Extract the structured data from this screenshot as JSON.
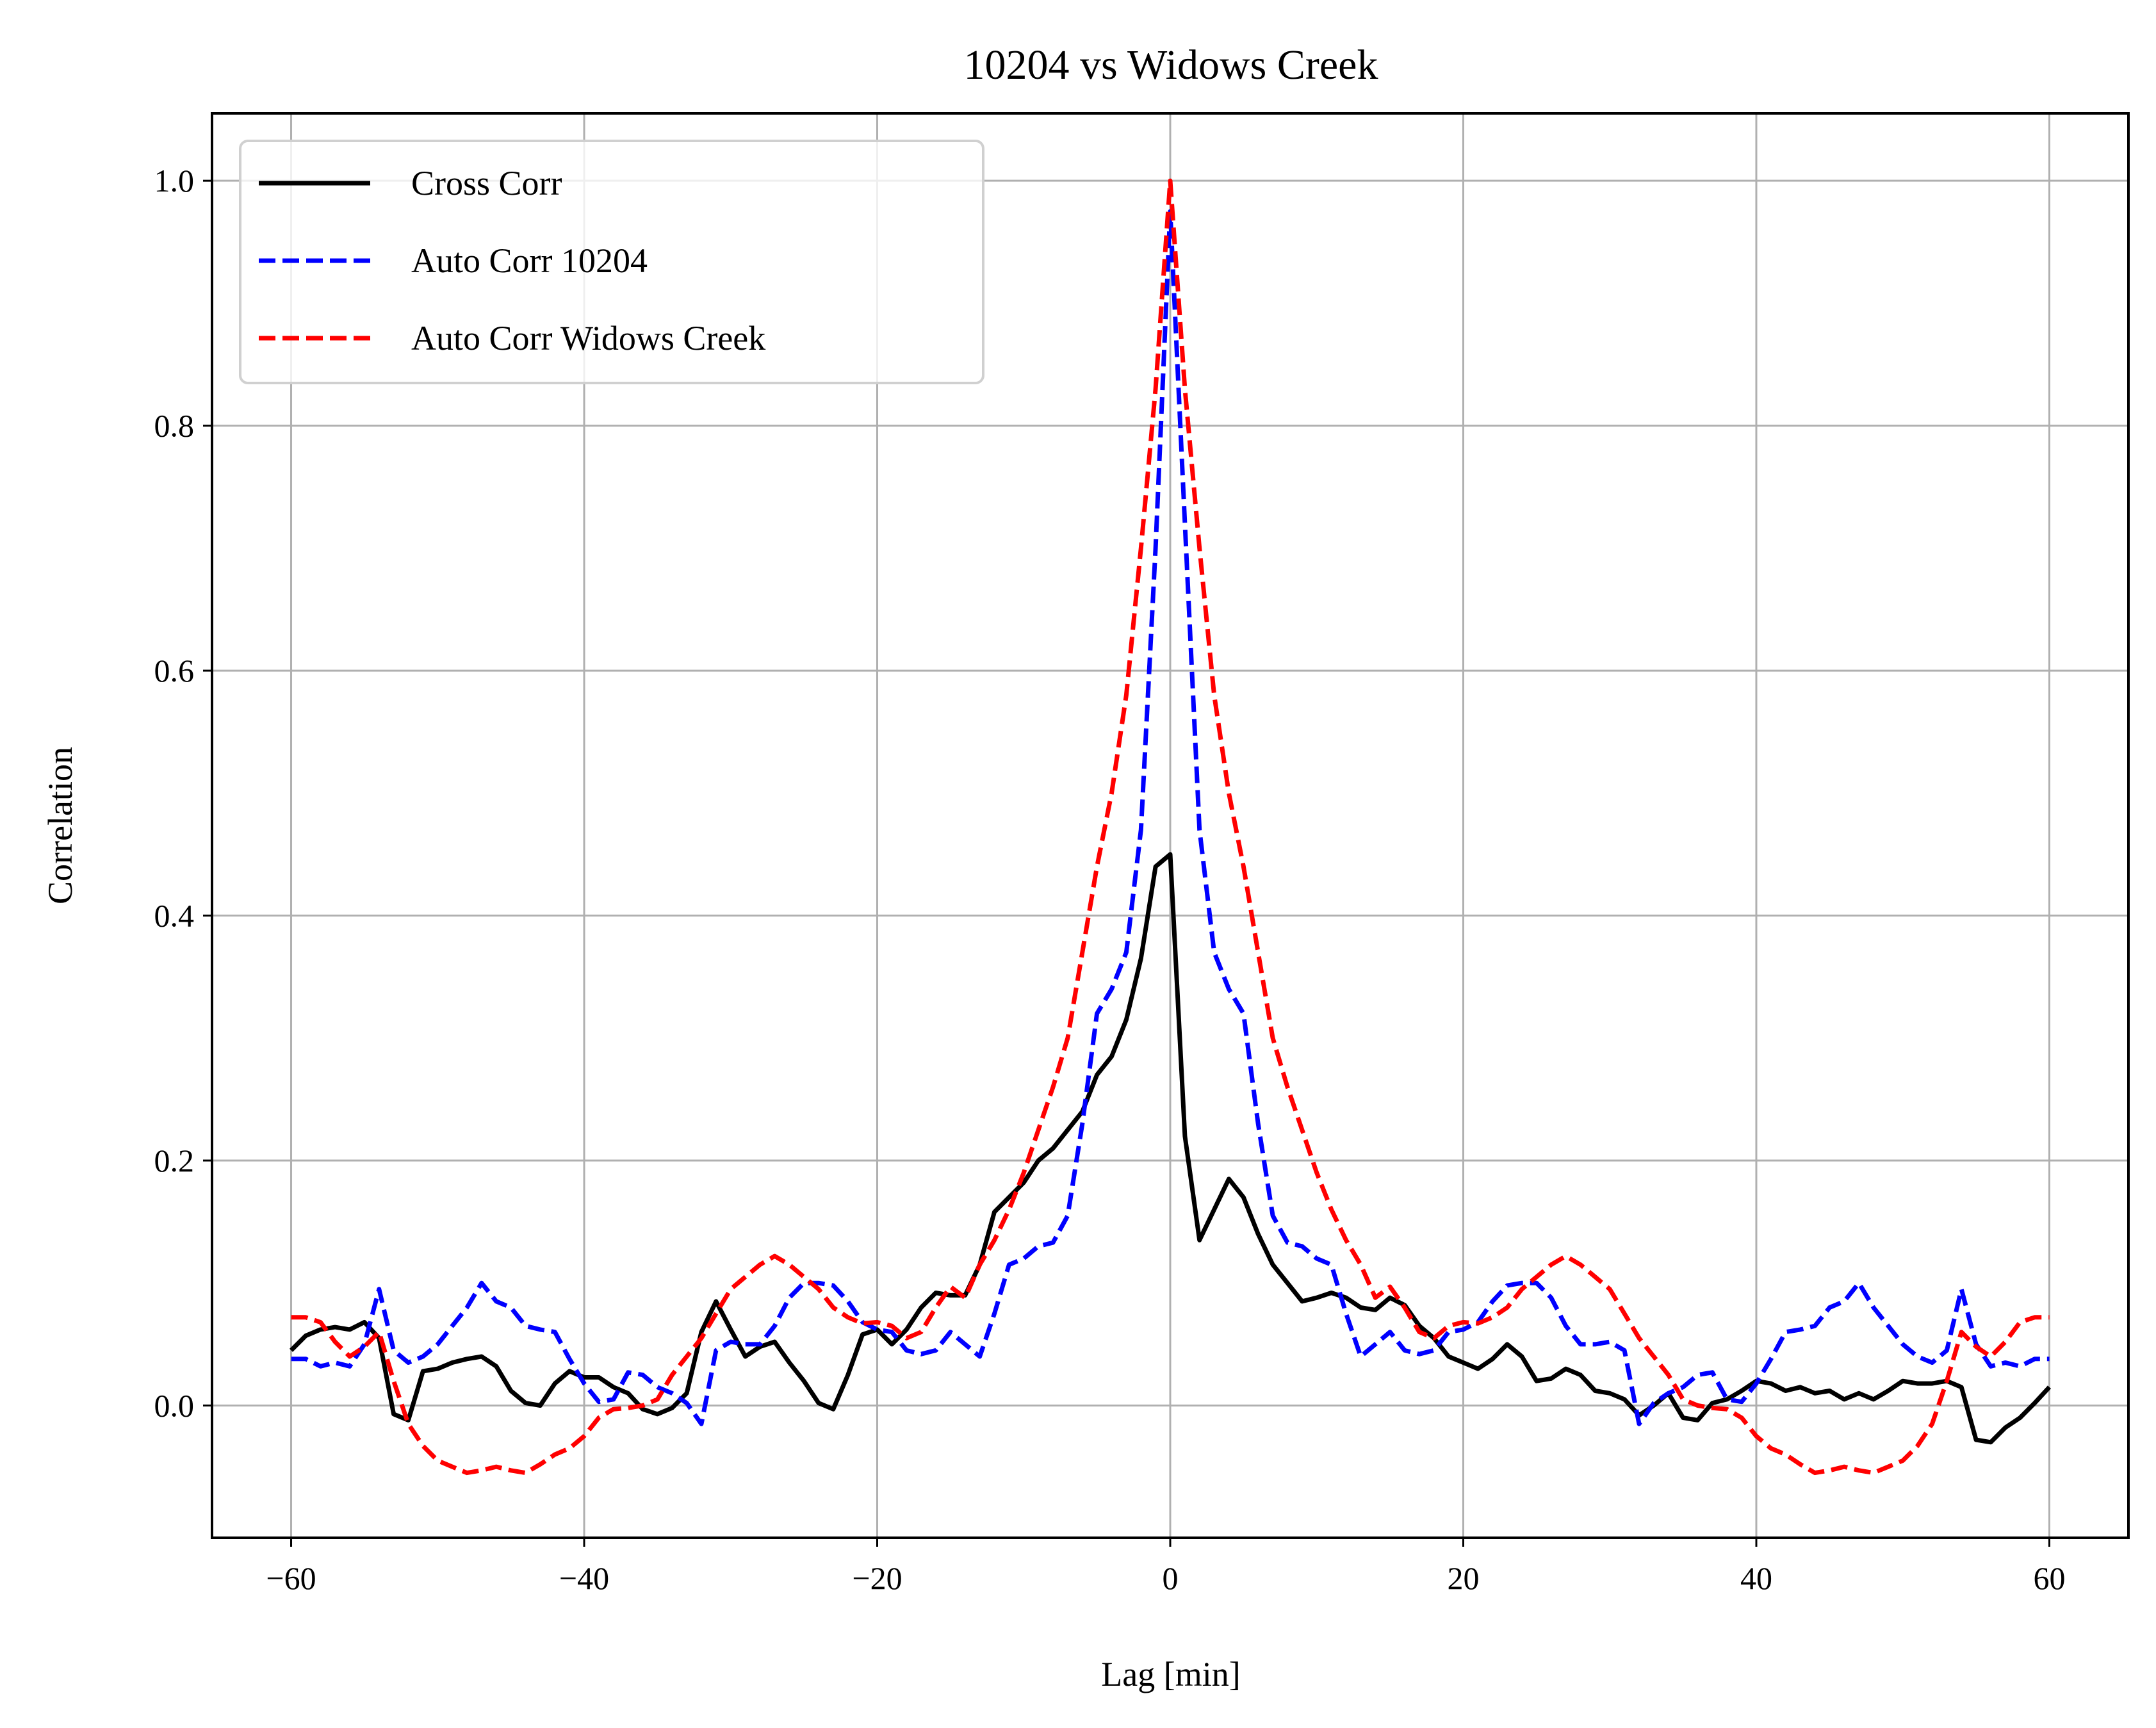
{
  "chart_data": {
    "type": "line",
    "title": "10204 vs Widows Creek",
    "xlabel": "Lag [min]",
    "ylabel": "Correlation",
    "xlim": [
      -65.4,
      65.4
    ],
    "ylim": [
      -0.108,
      1.055
    ],
    "x_ticks": [
      -60,
      -40,
      -20,
      0,
      20,
      40,
      60
    ],
    "x_tick_labels": [
      "−60",
      "−40",
      "−20",
      "0",
      "20",
      "40",
      "60"
    ],
    "y_ticks": [
      0.0,
      0.2,
      0.4,
      0.6,
      0.8,
      1.0
    ],
    "y_tick_labels": [
      "0.0",
      "0.2",
      "0.4",
      "0.6",
      "0.8",
      "1.0"
    ],
    "grid": true,
    "legend_position": "top-left",
    "x": [
      -60,
      -59,
      -58,
      -57,
      -56,
      -55,
      -54,
      -53,
      -52,
      -51,
      -50,
      -49,
      -48,
      -47,
      -46,
      -45,
      -44,
      -43,
      -42,
      -41,
      -40,
      -39,
      -38,
      -37,
      -36,
      -35,
      -34,
      -33,
      -32,
      -31,
      -30,
      -29,
      -28,
      -27,
      -26,
      -25,
      -24,
      -23,
      -22,
      -21,
      -20,
      -19,
      -18,
      -17,
      -16,
      -15,
      -14,
      -13,
      -12,
      -11,
      -10,
      -9,
      -8,
      -7,
      -6,
      -5,
      -4,
      -3,
      -2,
      -1,
      0,
      1,
      2,
      3,
      4,
      5,
      6,
      7,
      8,
      9,
      10,
      11,
      12,
      13,
      14,
      15,
      16,
      17,
      18,
      19,
      20,
      21,
      22,
      23,
      24,
      25,
      26,
      27,
      28,
      29,
      30,
      31,
      32,
      33,
      34,
      35,
      36,
      37,
      38,
      39,
      40,
      41,
      42,
      43,
      44,
      45,
      46,
      47,
      48,
      49,
      50,
      51,
      52,
      53,
      54,
      55,
      56,
      57,
      58,
      59,
      60
    ],
    "series": [
      {
        "name": "Cross Corr",
        "color": "#000000",
        "dash": "solid",
        "values": [
          0.045,
          0.057,
          0.062,
          0.064,
          0.062,
          0.068,
          0.055,
          -0.007,
          -0.012,
          0.028,
          0.03,
          0.035,
          0.038,
          0.04,
          0.032,
          0.012,
          0.002,
          0.0,
          0.018,
          0.028,
          0.023,
          0.023,
          0.015,
          0.01,
          -0.003,
          -0.007,
          -0.002,
          0.01,
          0.06,
          0.085,
          0.062,
          0.04,
          0.048,
          0.052,
          0.035,
          0.02,
          0.002,
          -0.003,
          0.025,
          0.058,
          0.062,
          0.05,
          0.062,
          0.08,
          0.092,
          0.09,
          0.09,
          0.115,
          0.158,
          0.17,
          0.182,
          0.2,
          0.21,
          0.225,
          0.24,
          0.27,
          0.285,
          0.315,
          0.365,
          0.44,
          0.45,
          0.22,
          0.135,
          0.16,
          0.185,
          0.17,
          0.14,
          0.115,
          0.1,
          0.085,
          0.088,
          0.092,
          0.088,
          0.08,
          0.078,
          0.088,
          0.082,
          0.065,
          0.055,
          0.04,
          0.035,
          0.03,
          0.038,
          0.05,
          0.04,
          0.02,
          0.022,
          0.03,
          0.025,
          0.012,
          0.01,
          0.005,
          -0.008,
          0.0,
          0.01,
          -0.01,
          -0.012,
          0.002,
          0.005,
          0.012,
          0.02,
          0.018,
          0.012,
          0.015,
          0.01,
          0.012,
          0.005,
          0.01,
          0.005,
          0.012,
          0.02,
          0.018,
          0.018,
          0.02,
          0.015,
          -0.028,
          -0.03,
          -0.018,
          -0.01,
          0.002,
          0.015
        ]
      },
      {
        "name": "Auto Corr 10204",
        "color": "#0000ff",
        "dash": "dashed",
        "values": [
          0.038,
          0.038,
          0.032,
          0.035,
          0.032,
          0.05,
          0.095,
          0.045,
          0.035,
          0.04,
          0.05,
          0.065,
          0.08,
          0.1,
          0.085,
          0.08,
          0.065,
          0.062,
          0.06,
          0.038,
          0.018,
          0.003,
          0.005,
          0.027,
          0.025,
          0.015,
          0.01,
          0.002,
          -0.015,
          0.045,
          0.052,
          0.05,
          0.05,
          0.065,
          0.088,
          0.1,
          0.1,
          0.098,
          0.085,
          0.068,
          0.062,
          0.06,
          0.045,
          0.042,
          0.045,
          0.06,
          0.05,
          0.04,
          0.075,
          0.115,
          0.12,
          0.13,
          0.133,
          0.155,
          0.23,
          0.32,
          0.34,
          0.37,
          0.47,
          0.7,
          0.975,
          0.72,
          0.47,
          0.37,
          0.34,
          0.32,
          0.23,
          0.155,
          0.133,
          0.13,
          0.12,
          0.115,
          0.075,
          0.04,
          0.05,
          0.06,
          0.045,
          0.042,
          0.045,
          0.06,
          0.062,
          0.068,
          0.085,
          0.098,
          0.1,
          0.1,
          0.088,
          0.065,
          0.05,
          0.05,
          0.052,
          0.045,
          -0.015,
          0.002,
          0.01,
          0.015,
          0.025,
          0.027,
          0.005,
          0.003,
          0.018,
          0.038,
          0.06,
          0.062,
          0.065,
          0.08,
          0.085,
          0.1,
          0.08,
          0.065,
          0.05,
          0.04,
          0.035,
          0.045,
          0.095,
          0.05,
          0.032,
          0.035,
          0.032,
          0.038,
          0.038
        ]
      },
      {
        "name": "Auto Corr Widows Creek",
        "color": "#ff0000",
        "dash": "dashed",
        "values": [
          0.072,
          0.072,
          0.068,
          0.052,
          0.04,
          0.048,
          0.06,
          0.02,
          -0.015,
          -0.033,
          -0.045,
          -0.05,
          -0.055,
          -0.053,
          -0.05,
          -0.053,
          -0.055,
          -0.048,
          -0.04,
          -0.035,
          -0.025,
          -0.01,
          -0.003,
          -0.002,
          0.0,
          0.005,
          0.025,
          0.04,
          0.055,
          0.075,
          0.095,
          0.105,
          0.115,
          0.122,
          0.115,
          0.105,
          0.095,
          0.08,
          0.072,
          0.067,
          0.068,
          0.065,
          0.055,
          0.06,
          0.08,
          0.097,
          0.088,
          0.115,
          0.135,
          0.16,
          0.19,
          0.225,
          0.26,
          0.3,
          0.37,
          0.44,
          0.5,
          0.58,
          0.7,
          0.83,
          1.0,
          0.83,
          0.7,
          0.58,
          0.5,
          0.44,
          0.37,
          0.3,
          0.26,
          0.225,
          0.19,
          0.16,
          0.135,
          0.115,
          0.088,
          0.097,
          0.08,
          0.06,
          0.055,
          0.065,
          0.068,
          0.067,
          0.072,
          0.08,
          0.095,
          0.105,
          0.115,
          0.122,
          0.115,
          0.105,
          0.095,
          0.075,
          0.055,
          0.04,
          0.025,
          0.005,
          0.0,
          -0.002,
          -0.003,
          -0.01,
          -0.025,
          -0.035,
          -0.04,
          -0.048,
          -0.055,
          -0.053,
          -0.05,
          -0.053,
          -0.055,
          -0.05,
          -0.045,
          -0.033,
          -0.015,
          0.02,
          0.06,
          0.048,
          0.04,
          0.052,
          0.068,
          0.072,
          0.072
        ]
      }
    ]
  }
}
